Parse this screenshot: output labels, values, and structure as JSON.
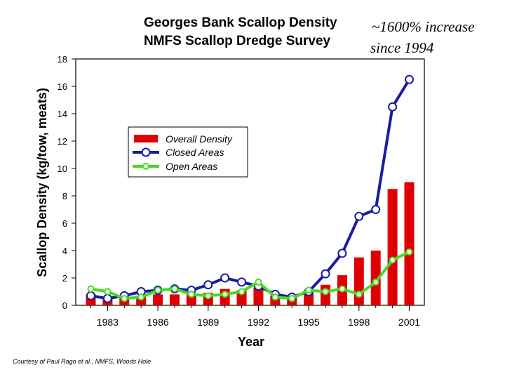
{
  "chart_data": {
    "type": "bar",
    "title": "Georges Bank Scallop Density",
    "subtitle": "NMFS Scallop Dredge Survey",
    "annotation_line1": "~1600% increase",
    "annotation_line2": "since 1994",
    "xlabel": "Year",
    "ylabel": "Scallop Density (kg/tow, meats)",
    "ylim": [
      0,
      18
    ],
    "yticks": [
      0,
      2,
      4,
      6,
      8,
      10,
      12,
      14,
      16,
      18
    ],
    "xticks": [
      1983,
      1986,
      1989,
      1992,
      1995,
      1998,
      2001
    ],
    "legend_position": "upper-left inside plot",
    "credit": "Courtesy of Paul Rago et al., NMFS, Woods Hole",
    "x": [
      1982,
      1983,
      1984,
      1985,
      1986,
      1987,
      1988,
      1989,
      1990,
      1991,
      1992,
      1993,
      1994,
      1995,
      1996,
      1997,
      1998,
      1999,
      2000,
      2001
    ],
    "series": [
      {
        "name": "Overall Density",
        "kind": "bar",
        "color": "#e00000",
        "values": [
          0.8,
          0.5,
          0.6,
          0.7,
          0.8,
          0.8,
          0.8,
          0.9,
          1.2,
          1.1,
          1.3,
          0.7,
          0.6,
          0.9,
          1.5,
          2.2,
          3.5,
          4.0,
          8.5,
          9.0
        ]
      },
      {
        "name": "Closed Areas",
        "kind": "line",
        "color": "#1a1aa6",
        "values": [
          0.7,
          0.5,
          0.7,
          1.0,
          1.1,
          1.2,
          1.1,
          1.5,
          2.0,
          1.7,
          1.4,
          0.8,
          0.6,
          1.0,
          2.3,
          3.8,
          6.5,
          7.0,
          14.5,
          16.5
        ]
      },
      {
        "name": "Open Areas",
        "kind": "line",
        "color": "#44dd22",
        "values": [
          1.2,
          1.0,
          0.5,
          0.6,
          1.1,
          1.2,
          0.8,
          0.7,
          0.8,
          1.0,
          1.7,
          0.6,
          0.5,
          1.1,
          1.0,
          1.2,
          0.8,
          1.7,
          3.3,
          3.9
        ]
      }
    ]
  }
}
